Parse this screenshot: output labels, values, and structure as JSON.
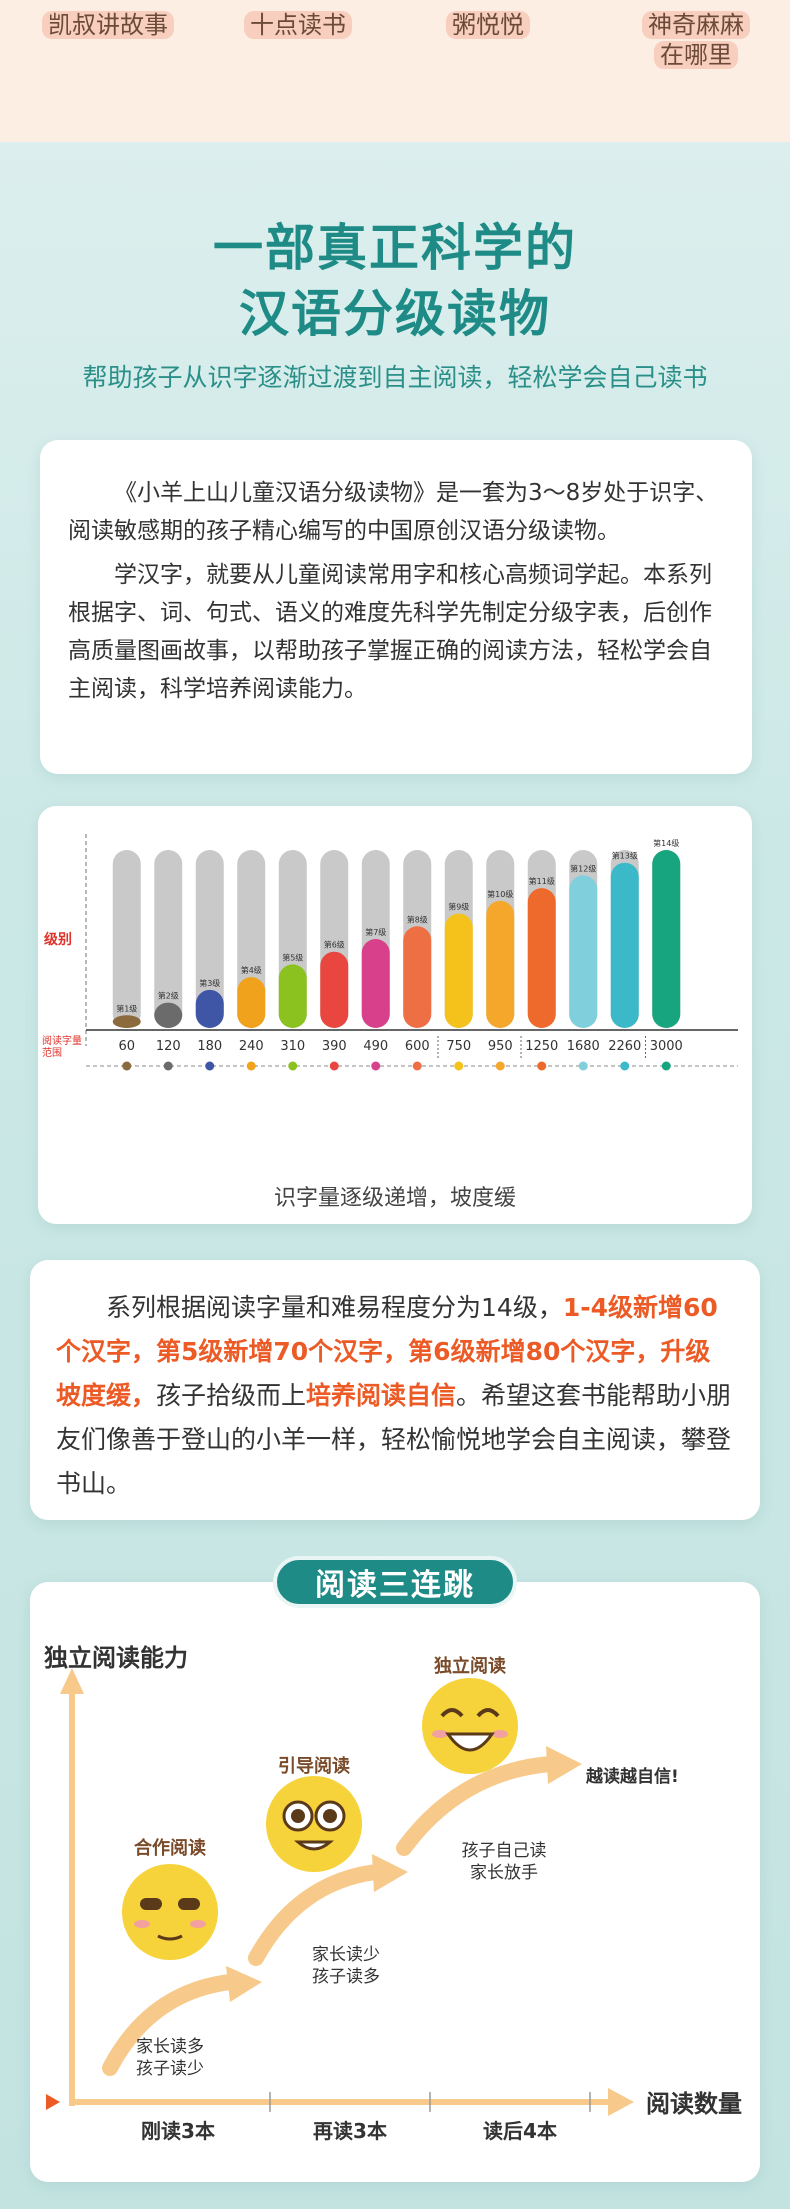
{
  "top_links": [
    "凯叔讲故事",
    "十点读书",
    "粥悦悦",
    "神奇麻麻",
    "在哪里"
  ],
  "hero": {
    "title_line1": "一部真正科学的",
    "title_line2": "汉语分级读物",
    "subtitle": "帮助孩子从识字逐渐过渡到自主阅读，轻松学会自己读书"
  },
  "intro": {
    "paragraph1": "《小羊上山儿童汉语分级读物》是一套为3～8岁处于识字、阅读敏感期的孩子精心编写的中国原创汉语分级读物。",
    "paragraph2": "学汉字，就要从儿童阅读常用字和核心高频词学起。本系列根据字、词、句式、语义的难度先科学先制定分级字表，后创作高质量图画故事，以帮助孩子掌握正确的阅读方法，轻松学会自主阅读，科学培养阅读能力。"
  },
  "chart_data": {
    "type": "bar",
    "ylabel": "级别",
    "xlabel": "阅读字量范围",
    "caption": "识字量逐级递增，坡度缓",
    "categories": [
      "60",
      "120",
      "180",
      "240",
      "310",
      "390",
      "490",
      "600",
      "750",
      "950",
      "1250",
      "1680",
      "2260",
      "3000"
    ],
    "level_labels": [
      "第1级",
      "第2级",
      "第3级",
      "第4级",
      "第5级",
      "第6级",
      "第7级",
      "第8级",
      "第9级",
      "第10级",
      "第11级",
      "第12级",
      "第13级",
      "第14级"
    ],
    "values": [
      1,
      2,
      3,
      4,
      5,
      6,
      7,
      8,
      9,
      10,
      11,
      12,
      13,
      14
    ],
    "ylim": [
      0,
      14
    ],
    "colors": [
      "#8b6a3e",
      "#6b6b6b",
      "#3f56a6",
      "#f0a21c",
      "#8bc21f",
      "#e8463f",
      "#d9408c",
      "#ef6f45",
      "#f5c21b",
      "#f4a72a",
      "#ee6a2c",
      "#7fd0dc",
      "#3cb9c8",
      "#16a57f"
    ],
    "track_color": "#c9c9c9"
  },
  "desc": {
    "text_a": "系列根据阅读字量和难易程度分为14级，",
    "highlight_a": "1-4级新增60个汉字，第5级新增70个汉字，第6级新增80个汉字，升级坡度缓，",
    "text_b": "孩子拾级而上",
    "highlight_b": "培养阅读自信",
    "text_c": "。希望这套书能帮助小朋友们像善于登山的小羊一样，轻松愉悦地学会自主阅读，攀登书山。"
  },
  "jump": {
    "title": "阅读三连跳",
    "y_axis": "独立阅读能力",
    "x_axis": "阅读数量",
    "stages": [
      {
        "name": "合作阅读",
        "note1": "家长读多",
        "note2": "孩子读少",
        "x_label": "刚读3本"
      },
      {
        "name": "引导阅读",
        "note1": "家长读少",
        "note2": "孩子读多",
        "x_label": "再读3本"
      },
      {
        "name": "独立阅读",
        "note1": "孩子自己读",
        "note2": "家长放手",
        "x_label": "读后4本"
      }
    ],
    "result": "越读越自信!"
  }
}
